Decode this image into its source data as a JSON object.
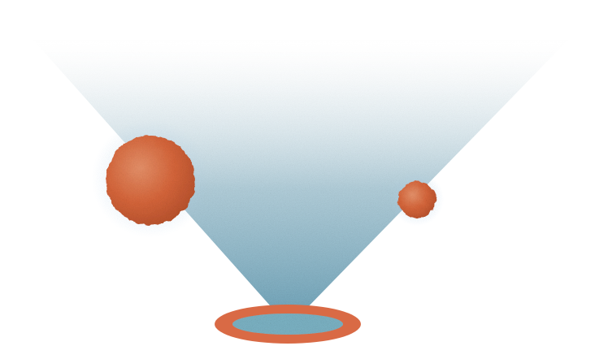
{
  "scene": {
    "background_color": "#ffffff",
    "beam_color": "#7fb3c6",
    "beam_edge_color": "#5e97b0",
    "sphere_color": "#d8663a",
    "sphere_highlight_color": "#e58a5c",
    "sphere_shadow_color": "#b94e27",
    "ring_color": "#d96a45",
    "ring_inner_color": "#7fb7c9",
    "halo_color": "#6e9fc7",
    "icons": [
      "light-beam",
      "large-sphere",
      "small-sphere",
      "base-ring"
    ]
  }
}
